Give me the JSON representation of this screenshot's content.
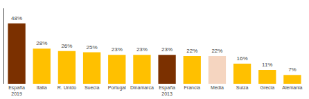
{
  "chart_data": {
    "type": "bar",
    "categories": [
      "España\n2019",
      "Italia",
      "R. Unido",
      "Suecia",
      "Portugal",
      "Dinamarca",
      "España\n2013",
      "Francia",
      "Media",
      "Suiza",
      "Grecia",
      "Alemania"
    ],
    "values": [
      48,
      28,
      26,
      25,
      23,
      23,
      23,
      22,
      22,
      16,
      11,
      7
    ],
    "value_labels": [
      "48%",
      "28%",
      "26%",
      "25%",
      "23%",
      "23%",
      "23%",
      "22%",
      "22%",
      "16%",
      "11%",
      "7%"
    ],
    "colors": [
      "#7B3000",
      "#FFC000",
      "#FFC000",
      "#FFC000",
      "#FFC000",
      "#FFC000",
      "#7B3000",
      "#FFC000",
      "#F5D5C0",
      "#FFC000",
      "#FFC000",
      "#FFC000"
    ],
    "ylim": [
      0,
      60
    ],
    "grid": false,
    "data_labels": true,
    "tick_labels": "x"
  }
}
